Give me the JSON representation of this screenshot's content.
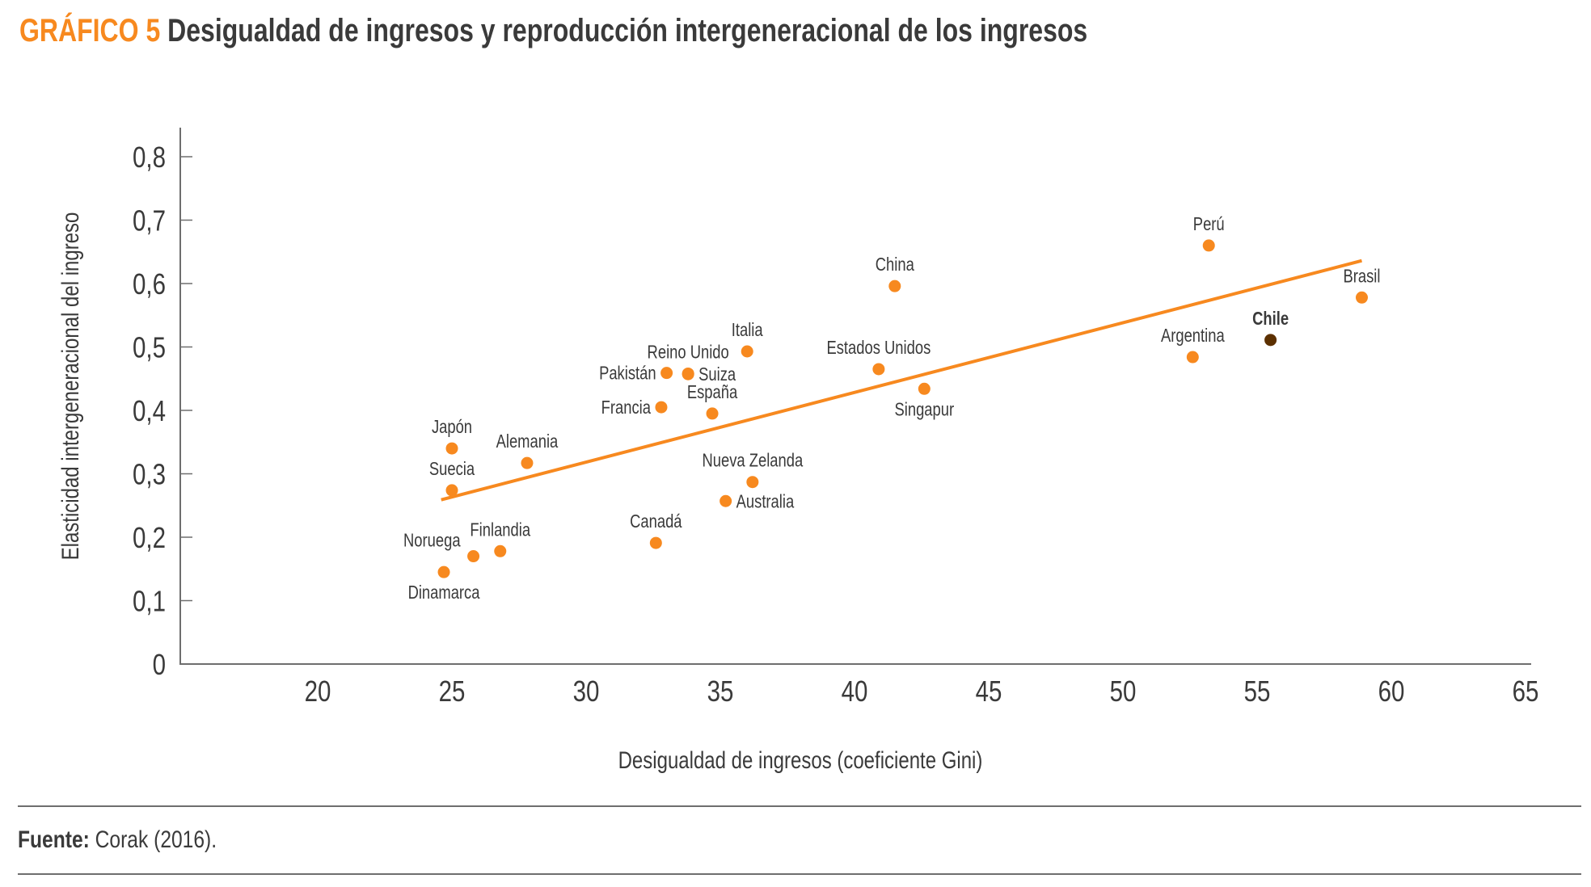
{
  "header": {
    "figure_number": "GRÁFICO 5",
    "title": "Desigualdad de ingresos y reproducción intergeneracional de los ingresos"
  },
  "footer": {
    "source_label": "Fuente:",
    "source_text": "Corak (2016)."
  },
  "colors": {
    "accent": "#f7891f",
    "highlight": "#5c3000",
    "text": "#3a3a3a",
    "axis": "#6e6e6e"
  },
  "chart_data": {
    "type": "scatter",
    "title": "Desigualdad de ingresos y reproducción intergeneracional de los ingresos",
    "xlabel": "Desigualdad de ingresos (coeficiente Gini)",
    "ylabel": "Elasticidad intergeneracional del ingreso",
    "xlim": [
      15,
      65
    ],
    "ylim": [
      0,
      0.8
    ],
    "xticks": [
      20,
      25,
      30,
      35,
      40,
      45,
      50,
      55,
      60,
      65
    ],
    "xtick_labels": [
      "20",
      "25",
      "30",
      "35",
      "40",
      "45",
      "50",
      "55",
      "60",
      "65"
    ],
    "yticks": [
      0,
      0.1,
      0.2,
      0.3,
      0.4,
      0.5,
      0.6,
      0.7,
      0.8
    ],
    "ytick_labels": [
      "0",
      "0,1",
      "0,2",
      "0,3",
      "0,4",
      "0,5",
      "0,6",
      "0,7",
      "0,8"
    ],
    "grid": false,
    "legend": "none",
    "points": [
      {
        "name": "Dinamarca",
        "x": 24.7,
        "y": 0.145,
        "label_pos": "below"
      },
      {
        "name": "Japón",
        "x": 25.0,
        "y": 0.34,
        "label_pos": "above"
      },
      {
        "name": "Suecia",
        "x": 25.0,
        "y": 0.274,
        "label_pos": "above"
      },
      {
        "name": "Noruega",
        "x": 25.8,
        "y": 0.17,
        "label_pos": "above-left"
      },
      {
        "name": "Finlandia",
        "x": 26.8,
        "y": 0.178,
        "label_pos": "above"
      },
      {
        "name": "Alemania",
        "x": 27.8,
        "y": 0.317,
        "label_pos": "above"
      },
      {
        "name": "Canadá",
        "x": 32.6,
        "y": 0.191,
        "label_pos": "above"
      },
      {
        "name": "Francia",
        "x": 32.8,
        "y": 0.405,
        "label_pos": "left"
      },
      {
        "name": "Pakistán",
        "x": 33.0,
        "y": 0.459,
        "label_pos": "left"
      },
      {
        "name": "Suiza",
        "x": 33.8,
        "y": 0.457,
        "label_pos": "right"
      },
      {
        "name": "Reino Unido",
        "x": 33.8,
        "y": 0.458,
        "label_pos": "above"
      },
      {
        "name": "España",
        "x": 34.7,
        "y": 0.395,
        "label_pos": "above"
      },
      {
        "name": "Australia",
        "x": 35.2,
        "y": 0.257,
        "label_pos": "right"
      },
      {
        "name": "Italia",
        "x": 36.0,
        "y": 0.493,
        "label_pos": "above"
      },
      {
        "name": "Nueva Zelanda",
        "x": 36.2,
        "y": 0.287,
        "label_pos": "above"
      },
      {
        "name": "Estados Unidos",
        "x": 40.9,
        "y": 0.465,
        "label_pos": "above"
      },
      {
        "name": "China",
        "x": 41.5,
        "y": 0.596,
        "label_pos": "above"
      },
      {
        "name": "Singapur",
        "x": 42.6,
        "y": 0.434,
        "label_pos": "below"
      },
      {
        "name": "Argentina",
        "x": 52.6,
        "y": 0.484,
        "label_pos": "above"
      },
      {
        "name": "Perú",
        "x": 53.2,
        "y": 0.66,
        "label_pos": "above"
      },
      {
        "name": "Chile",
        "x": 55.5,
        "y": 0.511,
        "label_pos": "above",
        "highlight": true
      },
      {
        "name": "Brasil",
        "x": 58.9,
        "y": 0.578,
        "label_pos": "above"
      }
    ],
    "trendline": {
      "type": "linear",
      "x": [
        24.6,
        58.9
      ],
      "y": [
        0.259,
        0.636
      ]
    }
  }
}
